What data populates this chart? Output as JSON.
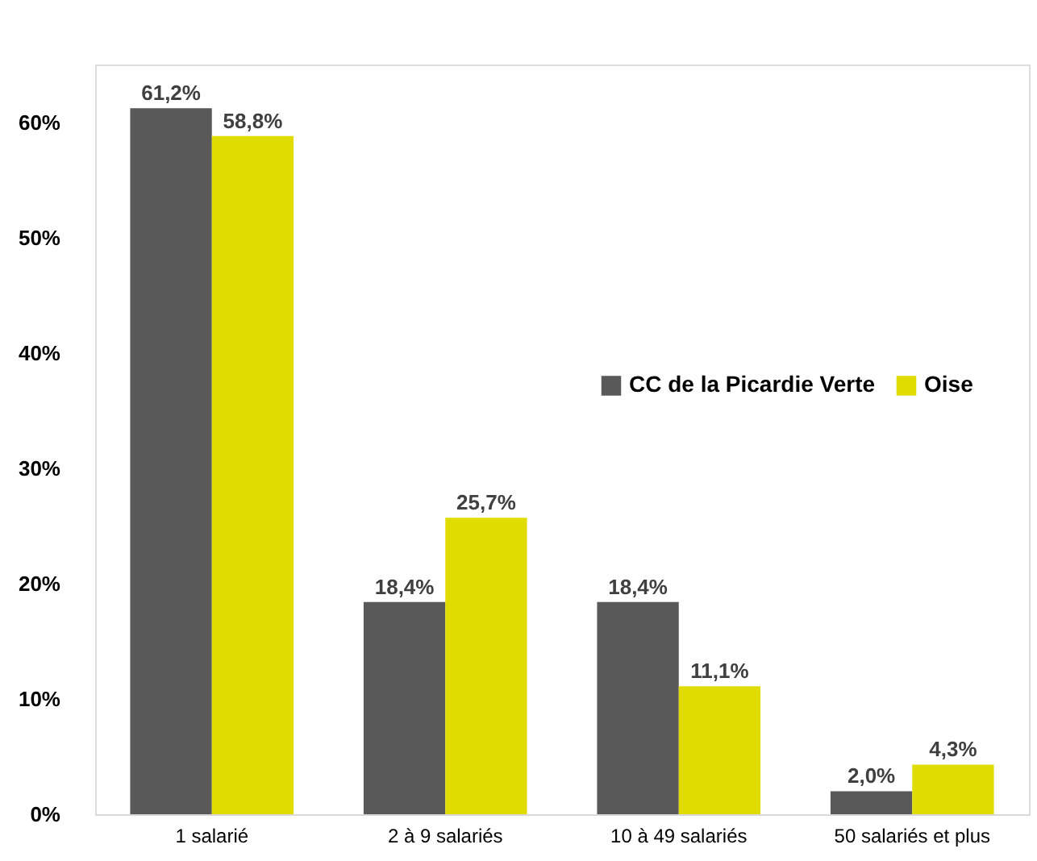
{
  "chart_data": {
    "type": "bar",
    "categories": [
      "1 salarié",
      "2 à 9 salariés",
      "10 à 49 salariés",
      "50 salariés et plus"
    ],
    "series": [
      {
        "name": "CC de la Picardie Verte",
        "color": "#595959",
        "values": [
          61.2,
          18.4,
          18.4,
          2.0
        ],
        "value_labels": [
          "61,2%",
          "18,4%",
          "18,4%",
          "2,0%"
        ]
      },
      {
        "name": "Oise",
        "color": "#e1dc00",
        "values": [
          58.8,
          25.7,
          11.1,
          4.3
        ],
        "value_labels": [
          "58,8%",
          "25,7%",
          "11,1%",
          "4,3%"
        ]
      }
    ],
    "ylim": [
      0,
      65
    ],
    "yticks": [
      {
        "value": 0,
        "label": "0%"
      },
      {
        "value": 10,
        "label": "10%"
      },
      {
        "value": 20,
        "label": "20%"
      },
      {
        "value": 30,
        "label": "30%"
      },
      {
        "value": 40,
        "label": "40%"
      },
      {
        "value": 50,
        "label": "50%"
      },
      {
        "value": 60,
        "label": "60%"
      }
    ],
    "legend": "right"
  }
}
